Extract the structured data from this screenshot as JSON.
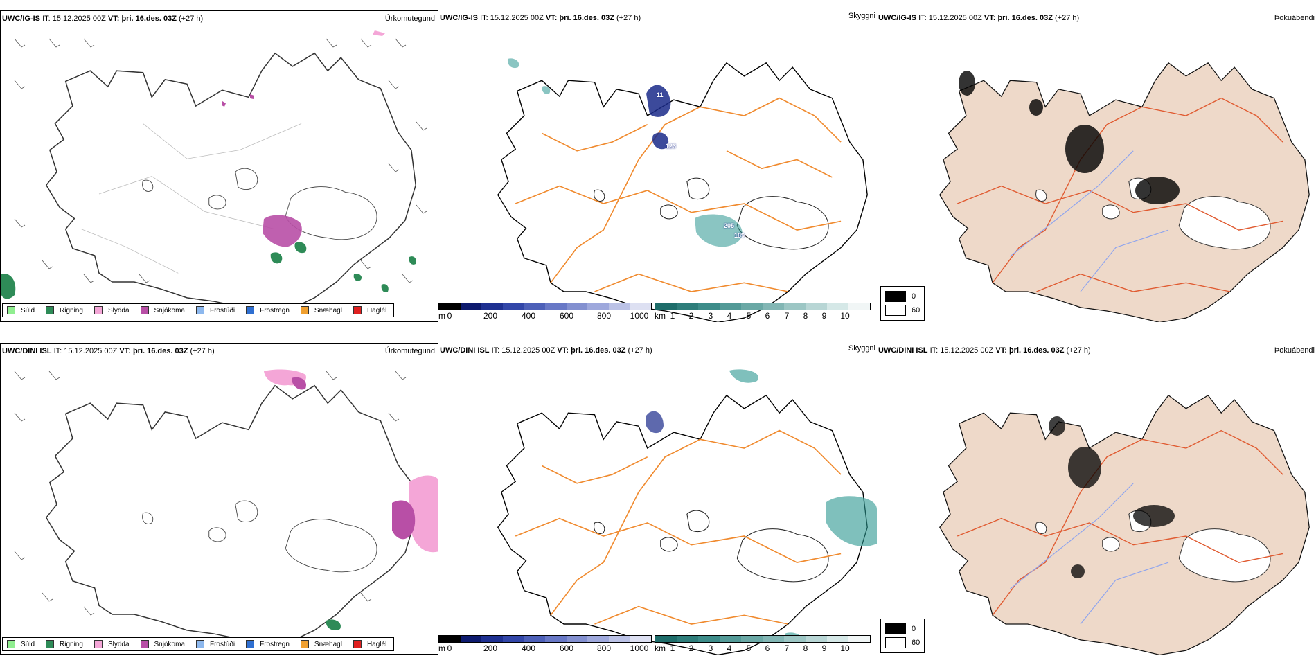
{
  "colors": {
    "sudd": "#90ee90",
    "rigning": "#2e8b57",
    "slydda": "#f4a6d7",
    "snjokoma": "#b84fa6",
    "frostudi": "#8db8ee",
    "frostregn": "#2f6fd1",
    "snaehagl": "#f0a030",
    "haglel": "#e02020",
    "road": "#f08a2e",
    "sea_ice_shade": "#eed9c9"
  },
  "rows": [
    {
      "model": "UWC/IG-IS",
      "it_label": "IT:",
      "it_value": "15.12.2025 00Z",
      "vt_label": "VT:",
      "vt_value": "þri. 16.des. 03Z",
      "lead": "(+27 h)",
      "precip_title": "Úrkomutegund",
      "cloud_title": "Skyggni",
      "fog_title": "Þokuábendi",
      "height_labels": [
        "11",
        "123",
        "205",
        "189"
      ]
    },
    {
      "model": "UWC/DINI ISL",
      "it_label": "IT:",
      "it_value": "15.12.2025 00Z",
      "vt_label": "VT:",
      "vt_value": "þri. 16.des. 03Z",
      "lead": "(+27 h)",
      "precip_title": "Úrkomutegund",
      "cloud_title": "Skyggni",
      "fog_title": "Þokuábendi",
      "height_labels": []
    }
  ],
  "precip_legend": [
    "Súld",
    "Rigning",
    "Slydda",
    "Snjókoma",
    "Frostúði",
    "Frostregn",
    "Snæhagl",
    "Haglél"
  ],
  "height_scale": {
    "unit": "m",
    "ticks": [
      "0",
      "200",
      "400",
      "600",
      "800",
      "1000"
    ]
  },
  "vis_scale": {
    "unit": "km",
    "ticks": [
      "1",
      "2",
      "3",
      "4",
      "5",
      "6",
      "7",
      "8",
      "9",
      "10"
    ]
  },
  "fog_scale": {
    "values": [
      "0",
      "60"
    ]
  }
}
